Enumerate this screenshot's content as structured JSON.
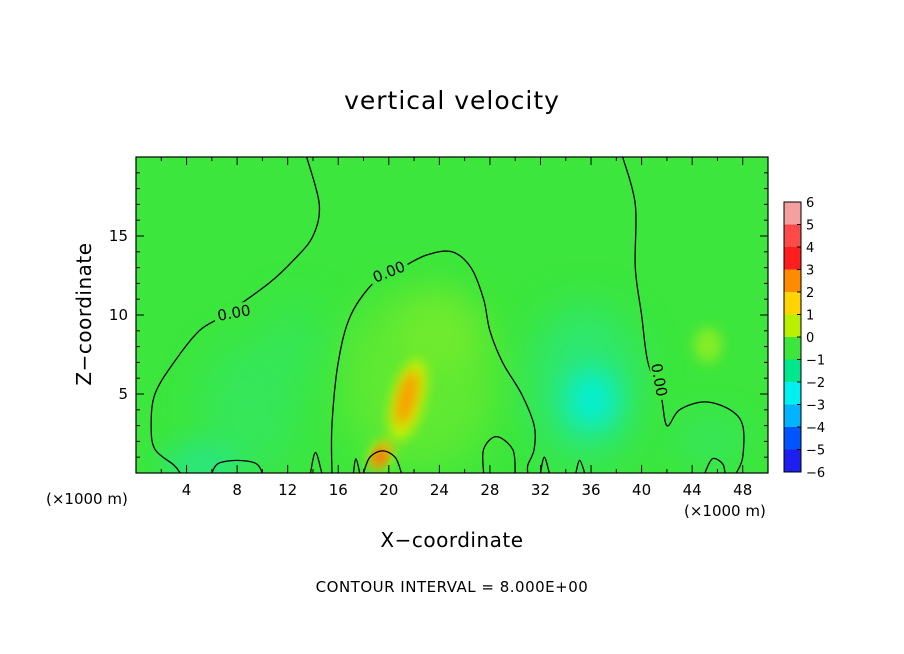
{
  "chart_data": {
    "type": "heatmap",
    "title": "vertical velocity",
    "xlabel": "X−coordinate",
    "ylabel": "Z−coordinate",
    "x_unit_note": "(×1000 m)",
    "x_ticks": [
      4,
      8,
      12,
      16,
      20,
      24,
      28,
      32,
      36,
      40,
      44,
      48
    ],
    "y_ticks": [
      5,
      10,
      15
    ],
    "xlim": [
      0,
      50
    ],
    "ylim": [
      0,
      20
    ],
    "grid": false,
    "footer": "CONTOUR INTERVAL = 8.000E+00",
    "contour_label": "0.00",
    "colorbar": {
      "levels": [
        6,
        5,
        4,
        3,
        2,
        1,
        0,
        -1,
        -2,
        -3,
        -4,
        -5,
        -6
      ],
      "labels": [
        "6",
        "5",
        "4",
        "3",
        "2",
        "1",
        "0",
        "−1",
        "−2",
        "−3",
        "−4",
        "−5",
        "−6"
      ],
      "colors": [
        "#f5a0a0",
        "#ff4a4a",
        "#ff1e1e",
        "#ff8c00",
        "#ffd400",
        "#b9f000",
        "#3ce63c",
        "#00e68c",
        "#00f0f0",
        "#00b4ff",
        "#0055ff",
        "#1e1ef0",
        "#7d1eaa"
      ]
    },
    "features": [
      {
        "name": "updraft",
        "x": 21.5,
        "z": 5.0,
        "w": 3.5
      },
      {
        "name": "updraft-near-surface",
        "x": 19.5,
        "z": 1.2,
        "w": 3.0
      },
      {
        "name": "downdraft",
        "x": 35.5,
        "z": 4.5,
        "w": -2.0
      },
      {
        "name": "weak-downdraft",
        "x": 5,
        "z": 0.5,
        "w": -1.0
      },
      {
        "name": "weak-updraft",
        "x": 45.5,
        "z": 8.0,
        "w": 0.5
      }
    ],
    "contours": [
      {
        "value": 0,
        "points": [
          [
            13.5,
            20
          ],
          [
            14.5,
            17
          ],
          [
            14,
            15
          ],
          [
            12.5,
            13.5
          ],
          [
            10.5,
            12
          ],
          [
            7,
            10
          ],
          [
            5,
            9
          ],
          [
            3,
            7
          ],
          [
            1.5,
            5
          ],
          [
            1.2,
            3
          ],
          [
            1.5,
            1.5
          ],
          [
            3,
            0.5
          ],
          [
            3.5,
            0
          ]
        ]
      },
      {
        "value": 0,
        "points": [
          [
            15.5,
            0
          ],
          [
            15.5,
            3
          ],
          [
            16,
            7
          ],
          [
            17,
            10
          ],
          [
            19,
            12.2
          ],
          [
            21,
            13
          ],
          [
            23,
            13.8
          ],
          [
            25,
            14
          ],
          [
            26.5,
            13
          ],
          [
            27.5,
            11
          ],
          [
            28,
            9
          ],
          [
            29,
            7
          ],
          [
            30.5,
            5
          ],
          [
            31.5,
            3
          ],
          [
            31.5,
            1.5
          ],
          [
            31,
            0.5
          ],
          [
            31,
            0
          ]
        ]
      },
      {
        "value": 0,
        "points": [
          [
            38.5,
            20
          ],
          [
            39.5,
            17
          ],
          [
            39.5,
            13
          ],
          [
            40,
            10
          ],
          [
            40.5,
            7
          ],
          [
            41.5,
            5
          ],
          [
            42,
            3
          ],
          [
            43,
            4
          ],
          [
            45,
            4.5
          ],
          [
            47,
            4
          ],
          [
            48,
            3
          ],
          [
            48,
            1
          ],
          [
            47.5,
            0
          ]
        ]
      },
      {
        "value": 0,
        "points": [
          [
            18,
            0
          ],
          [
            18.5,
            1
          ],
          [
            19.5,
            1.4
          ],
          [
            20.5,
            1
          ],
          [
            21,
            0
          ]
        ]
      },
      {
        "value": 0,
        "points": [
          [
            27.5,
            0
          ],
          [
            27.5,
            1.5
          ],
          [
            28.5,
            2.3
          ],
          [
            29.8,
            1.5
          ],
          [
            30,
            0
          ]
        ]
      },
      {
        "value": 0,
        "points": [
          [
            6,
            0
          ],
          [
            6.5,
            0.6
          ],
          [
            8,
            0.8
          ],
          [
            9.5,
            0.6
          ],
          [
            10,
            0
          ]
        ]
      },
      {
        "value": 0,
        "points": [
          [
            13.8,
            0
          ],
          [
            14.2,
            1.3
          ],
          [
            14.7,
            0
          ]
        ]
      },
      {
        "value": 0,
        "points": [
          [
            17.2,
            0
          ],
          [
            17.4,
            0.9
          ],
          [
            17.7,
            0
          ]
        ]
      },
      {
        "value": 0,
        "points": [
          [
            32,
            0
          ],
          [
            32.3,
            1
          ],
          [
            32.7,
            0
          ]
        ]
      },
      {
        "value": 0,
        "points": [
          [
            34.8,
            0
          ],
          [
            35.1,
            0.8
          ],
          [
            35.5,
            0
          ]
        ]
      },
      {
        "value": 0,
        "points": [
          [
            45,
            0
          ],
          [
            45.6,
            0.9
          ],
          [
            46.4,
            0.6
          ],
          [
            46.6,
            0
          ]
        ]
      }
    ]
  }
}
